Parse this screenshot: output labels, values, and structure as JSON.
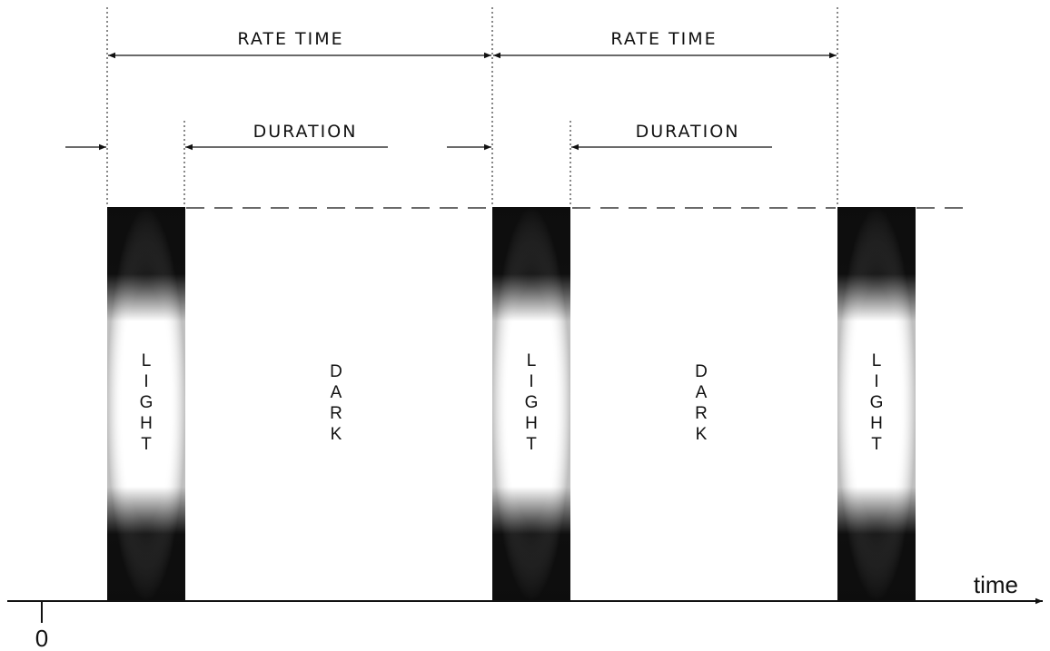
{
  "labels": {
    "rate_time": "RATE TIME",
    "duration": "DURATION",
    "light": "LIGHT",
    "dark": "DARK",
    "time_axis": "time",
    "origin": "0"
  },
  "colors": {
    "pulse_dark": "#111111",
    "pulse_light": "#ffffff",
    "line": "#111111"
  }
}
